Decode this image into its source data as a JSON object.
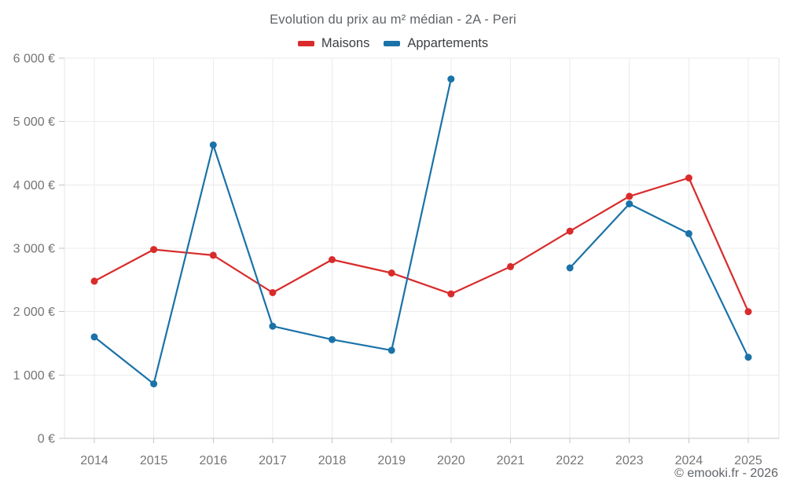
{
  "page": {
    "footer_credit": "© emooki.fr - 2026"
  },
  "chart_data": {
    "type": "line",
    "title": "Evolution du prix au m² médian - 2A - Peri",
    "categories": [
      "2014",
      "2015",
      "2016",
      "2017",
      "2018",
      "2019",
      "2020",
      "2021",
      "2022",
      "2023",
      "2024",
      "2025"
    ],
    "series": [
      {
        "name": "Maisons",
        "color": "#d92b2b",
        "values": [
          2480,
          2980,
          2890,
          2300,
          2820,
          2610,
          2280,
          2710,
          3270,
          3820,
          4110,
          2000
        ]
      },
      {
        "name": "Appartements",
        "color": "#1b72a8",
        "values": [
          1600,
          860,
          4630,
          1770,
          1560,
          1390,
          5670,
          null,
          2690,
          3700,
          3230,
          1280
        ]
      }
    ],
    "ylim": [
      0,
      6000
    ],
    "ytick_step": 1000,
    "ytick_suffix": " €",
    "ytick_labels": [
      "0 €",
      "1 000 €",
      "2 000 €",
      "3 000 €",
      "4 000 €",
      "5 000 €",
      "6 000 €"
    ],
    "grid": true,
    "legend_position": "top"
  },
  "style": {
    "gridline_color": "#ebebeb",
    "boundary_color": "#e6e6e6",
    "axis_color": "#c4c4c4",
    "tick_label_color": "#757575",
    "title_color": "#5f6368",
    "legend_text_color": "#3d4043",
    "background": "#ffffff"
  }
}
